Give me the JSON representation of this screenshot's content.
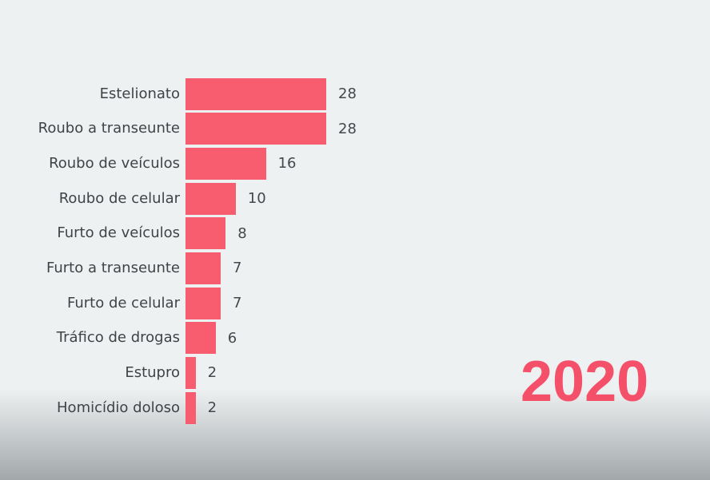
{
  "chart_data": {
    "type": "bar",
    "orientation": "horizontal",
    "title": "",
    "xlabel": "",
    "ylabel": "",
    "categories": [
      "Estelionato",
      "Roubo a transeunte",
      "Roubo de veículos",
      "Roubo de celular",
      "Furto de veículos",
      "Furto a transeunte",
      "Furto de celular",
      "Tráfico de drogas",
      "Estupro",
      "Homicídio doloso"
    ],
    "values": [
      28,
      28,
      16,
      10,
      8,
      7,
      7,
      6,
      2,
      2
    ],
    "xlim": [
      0,
      28
    ],
    "grid": false,
    "legend": false,
    "value_labels": true,
    "bar_color": "#f85c6f",
    "label_color": "#3f4347",
    "value_color": "#44484c"
  },
  "overlay": {
    "year_label": "2020",
    "year_color": "#f4506a"
  },
  "canvas": {
    "background_top": "#eef1f2",
    "background_bottom": "#a2a8aa"
  }
}
